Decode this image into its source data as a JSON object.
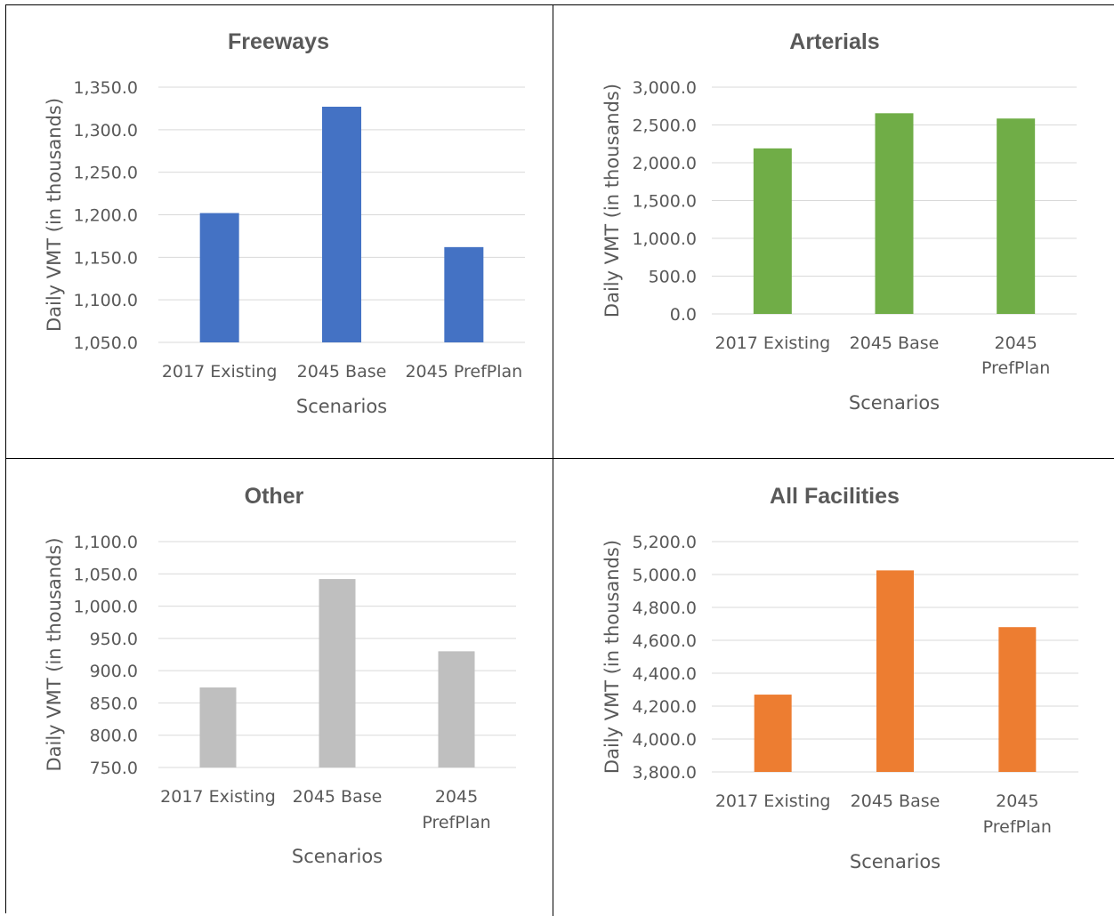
{
  "colors": {
    "freeways": "#4472c4",
    "arterials": "#70ad47",
    "other": "#bfbfbf",
    "all": "#ed7d31",
    "grid": "#d9d9d9",
    "text": "#595959"
  },
  "chart_data": [
    {
      "type": "bar",
      "title": "Freeways",
      "color": "#4472c4",
      "categories": [
        [
          "2017 Existing"
        ],
        [
          "2045 Base"
        ],
        [
          "2045 PrefPlan"
        ]
      ],
      "values": [
        1202.0,
        1327.0,
        1162.0
      ],
      "ylim": [
        1050,
        1350
      ],
      "yticks": [
        "1,050.0",
        "1,100.0",
        "1,150.0",
        "1,200.0",
        "1,250.0",
        "1,300.0",
        "1,350.0"
      ],
      "xlabel": "Scenarios",
      "ylabel": "Daily VMT (in thousands)",
      "grid": true
    },
    {
      "type": "bar",
      "title": "Arterials",
      "color": "#70ad47",
      "categories": [
        [
          "2017 Existing"
        ],
        [
          "2045 Base"
        ],
        [
          "2045",
          "PrefPlan"
        ]
      ],
      "values": [
        2190.0,
        2655.0,
        2585.0
      ],
      "ylim": [
        0,
        3000
      ],
      "yticks": [
        "0.0",
        "500.0",
        "1,000.0",
        "1,500.0",
        "2,000.0",
        "2,500.0",
        "3,000.0"
      ],
      "xlabel": "Scenarios",
      "ylabel": "Daily VMT (in thousands)",
      "grid": true
    },
    {
      "type": "bar",
      "title": "Other",
      "color": "#bfbfbf",
      "categories": [
        [
          "2017 Existing"
        ],
        [
          "2045 Base"
        ],
        [
          "2045",
          "PrefPlan"
        ]
      ],
      "values": [
        874.0,
        1042.0,
        930.0
      ],
      "ylim": [
        750,
        1100
      ],
      "yticks": [
        "750.0",
        "800.0",
        "850.0",
        "900.0",
        "950.0",
        "1,000.0",
        "1,050.0",
        "1,100.0"
      ],
      "xlabel": "Scenarios",
      "ylabel": "Daily VMT (in thousands)",
      "grid": true
    },
    {
      "type": "bar",
      "title": "All Facilities",
      "color": "#ed7d31",
      "categories": [
        [
          "2017 Existing"
        ],
        [
          "2045 Base"
        ],
        [
          "2045",
          "PrefPlan"
        ]
      ],
      "values": [
        4270.0,
        5025.0,
        4680.0
      ],
      "ylim": [
        3800,
        5200
      ],
      "yticks": [
        "3,800.0",
        "4,000.0",
        "4,200.0",
        "4,400.0",
        "4,600.0",
        "4,800.0",
        "5,000.0",
        "5,200.0"
      ],
      "xlabel": "Scenarios",
      "ylabel": "Daily VMT (in thousands)",
      "grid": true
    }
  ]
}
